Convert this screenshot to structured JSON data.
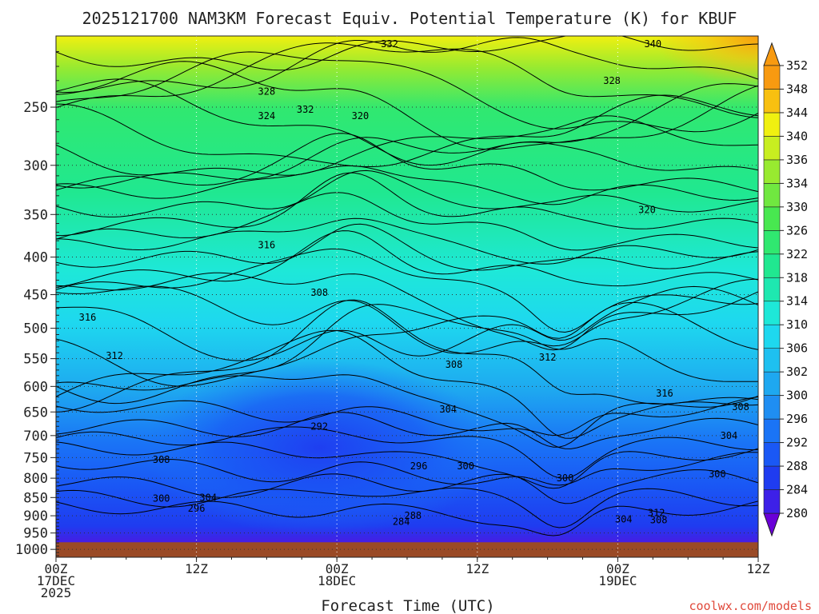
{
  "chart_data": {
    "type": "heatmap",
    "title": "2025121700 NAM3KM Forecast Equiv. Potential Temperature (K) for KBUF",
    "xlabel": "Forecast Time (UTC)",
    "ylabel": "",
    "credit": "coolwx.com/models",
    "x_range_hours": [
      0,
      60
    ],
    "x_ticks": [
      {
        "hour": 0,
        "lines": [
          "00Z",
          "17DEC",
          "2025"
        ]
      },
      {
        "hour": 12,
        "lines": [
          "12Z"
        ]
      },
      {
        "hour": 24,
        "lines": [
          "00Z",
          "18DEC"
        ]
      },
      {
        "hour": 36,
        "lines": [
          "12Z"
        ]
      },
      {
        "hour": 48,
        "lines": [
          "00Z",
          "19DEC"
        ]
      },
      {
        "hour": 60,
        "lines": [
          "12Z"
        ]
      }
    ],
    "y_ticks_hpa": [
      250,
      300,
      350,
      400,
      450,
      500,
      550,
      600,
      650,
      700,
      750,
      800,
      850,
      900,
      950,
      1000
    ],
    "y_range_hpa": [
      200,
      1025
    ],
    "ground_top_hpa": 978,
    "grid": true,
    "colorbar": {
      "levels": [
        280,
        284,
        288,
        292,
        296,
        300,
        302,
        306,
        310,
        314,
        318,
        322,
        326,
        330,
        334,
        336,
        340,
        344,
        348,
        352
      ],
      "colors": [
        "#6a00d8",
        "#3d20e8",
        "#1f3cf0",
        "#1a58f5",
        "#1a74f6",
        "#1f8ef2",
        "#1ea8f0",
        "#1ec0f0",
        "#1ed8ef",
        "#1ee8d8",
        "#1ee8b0",
        "#20e890",
        "#30e870",
        "#48e850",
        "#70e840",
        "#98ea30",
        "#c8ee20",
        "#f0f010",
        "#f8c010",
        "#f89a10"
      ],
      "placement": "right"
    },
    "contour_labels": [
      {
        "hour": 28.5,
        "hpa": 205,
        "text": "332"
      },
      {
        "hour": 51.0,
        "hpa": 205,
        "text": "340"
      },
      {
        "hour": 47.5,
        "hpa": 230,
        "text": "328"
      },
      {
        "hour": 18.0,
        "hpa": 238,
        "text": "328"
      },
      {
        "hour": 18.0,
        "hpa": 257,
        "text": "324"
      },
      {
        "hour": 21.3,
        "hpa": 252,
        "text": "332"
      },
      {
        "hour": 26.0,
        "hpa": 257,
        "text": "320"
      },
      {
        "hour": 50.5,
        "hpa": 345,
        "text": "320"
      },
      {
        "hour": 18.0,
        "hpa": 385,
        "text": "316"
      },
      {
        "hour": 22.5,
        "hpa": 447,
        "text": "308"
      },
      {
        "hour": 2.7,
        "hpa": 483,
        "text": "316"
      },
      {
        "hour": 5.0,
        "hpa": 545,
        "text": "312"
      },
      {
        "hour": 34.0,
        "hpa": 560,
        "text": "308"
      },
      {
        "hour": 42.0,
        "hpa": 548,
        "text": "312"
      },
      {
        "hour": 52.0,
        "hpa": 613,
        "text": "316"
      },
      {
        "hour": 33.5,
        "hpa": 645,
        "text": "304"
      },
      {
        "hour": 58.5,
        "hpa": 640,
        "text": "308"
      },
      {
        "hour": 22.5,
        "hpa": 680,
        "text": "292"
      },
      {
        "hour": 57.5,
        "hpa": 700,
        "text": "304"
      },
      {
        "hour": 9.0,
        "hpa": 755,
        "text": "308"
      },
      {
        "hour": 31.0,
        "hpa": 770,
        "text": "296"
      },
      {
        "hour": 35.0,
        "hpa": 770,
        "text": "300"
      },
      {
        "hour": 56.5,
        "hpa": 790,
        "text": "300"
      },
      {
        "hour": 43.5,
        "hpa": 800,
        "text": "300"
      },
      {
        "hour": 13.0,
        "hpa": 850,
        "text": "304"
      },
      {
        "hour": 9.0,
        "hpa": 853,
        "text": "300"
      },
      {
        "hour": 12.0,
        "hpa": 880,
        "text": "296"
      },
      {
        "hour": 30.5,
        "hpa": 900,
        "text": "288"
      },
      {
        "hour": 29.5,
        "hpa": 917,
        "text": "284"
      },
      {
        "hour": 51.3,
        "hpa": 892,
        "text": "312"
      },
      {
        "hour": 48.5,
        "hpa": 910,
        "text": "304"
      },
      {
        "hour": 51.5,
        "hpa": 912,
        "text": "308"
      }
    ]
  }
}
